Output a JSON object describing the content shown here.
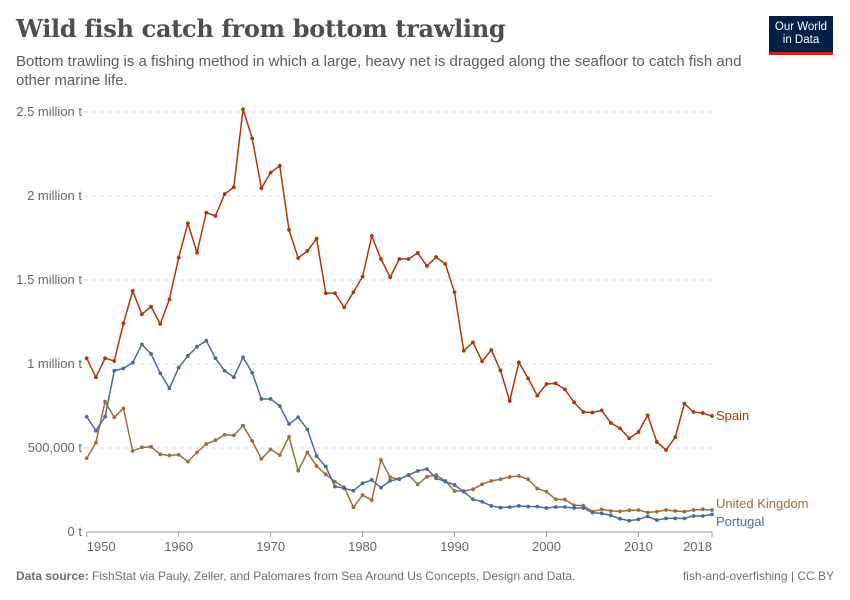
{
  "header": {
    "title": "Wild fish catch from bottom trawling",
    "subtitle": "Bottom trawling is a fishing method in which a large, heavy net is dragged along the seafloor to catch fish and other marine life.",
    "logo_text": "Our World in Data",
    "logo_line1": "Our World",
    "logo_line2": "in Data"
  },
  "footer": {
    "source_label": "Data source:",
    "source_text": "FishStat via Pauly, Zeller, and Palomares from Sea Around Us Concepts, Design and Data.",
    "right_text": "fish-and-overfishing | CC BY"
  },
  "colors": {
    "Spain": "#b13507",
    "United Kingdom": "#9c6e3c",
    "Portugal": "#4c6a9c",
    "logo_bg": "#002147",
    "logo_accent": "#ce261e"
  },
  "chart_data": {
    "type": "line",
    "title": "Wild fish catch from bottom trawling",
    "xlabel": "",
    "ylabel": "",
    "xlim": [
      1950,
      2018
    ],
    "ylim": [
      0,
      2500000
    ],
    "grid": "horizontal dashed",
    "legend": "inline labels at line ends (right)",
    "x_ticks": [
      "1950",
      "1960",
      "1970",
      "1980",
      "1990",
      "2000",
      "2010",
      "2018"
    ],
    "x_tick_values": [
      1950,
      1960,
      1970,
      1980,
      1990,
      2000,
      2010,
      2018
    ],
    "y_ticks": [
      "0 t",
      "500,000 t",
      "1 million t",
      "1.5 million t",
      "2 million t",
      "2.5 million t"
    ],
    "y_tick_values": [
      0,
      500000,
      1000000,
      1500000,
      2000000,
      2500000
    ],
    "x_start": 1950,
    "series": [
      {
        "name": "Spain",
        "values": [
          1034000,
          921000,
          1034000,
          1018000,
          1242000,
          1435000,
          1296000,
          1341000,
          1238000,
          1385000,
          1633000,
          1838000,
          1663000,
          1901000,
          1881000,
          2012000,
          2052000,
          2516000,
          2343000,
          2046000,
          2139000,
          2180000,
          1798000,
          1631000,
          1673000,
          1746000,
          1421000,
          1421000,
          1337000,
          1427000,
          1520000,
          1762000,
          1625000,
          1516000,
          1625000,
          1625000,
          1661000,
          1583000,
          1637000,
          1595000,
          1427000,
          1079000,
          1129000,
          1016000,
          1083000,
          962000,
          780000,
          1010000,
          915000,
          811000,
          881000,
          885000,
          849000,
          772000,
          714000,
          711000,
          724000,
          649000,
          617000,
          558000,
          595000,
          695000,
          536000,
          488000,
          564000,
          764000,
          714000,
          708000,
          690000
        ]
      },
      {
        "name": "United Kingdom",
        "values": [
          439000,
          532000,
          776000,
          683000,
          736000,
          482000,
          504000,
          507000,
          462000,
          456000,
          460000,
          419000,
          474000,
          524000,
          546000,
          579000,
          575000,
          633000,
          542000,
          435000,
          492000,
          458000,
          567000,
          365000,
          474000,
          393000,
          343000,
          300000,
          266000,
          147000,
          220000,
          190000,
          429000,
          326000,
          314000,
          339000,
          284000,
          329000,
          339000,
          304000,
          244000,
          244000,
          254000,
          284000,
          304000,
          314000,
          328000,
          333000,
          314000,
          259000,
          240000,
          195000,
          193000,
          159000,
          157000,
          121000,
          135000,
          125000,
          123000,
          129000,
          131000,
          117000,
          121000,
          131000,
          125000,
          121000,
          131000,
          135000,
          131000
        ]
      },
      {
        "name": "Portugal",
        "values": [
          686000,
          603000,
          686000,
          960000,
          974000,
          1008000,
          1117000,
          1060000,
          945000,
          855000,
          978000,
          1048000,
          1103000,
          1139000,
          1034000,
          960000,
          921000,
          1040000,
          948000,
          792000,
          792000,
          750000,
          643000,
          683000,
          611000,
          452000,
          389000,
          270000,
          260000,
          246000,
          290000,
          310000,
          264000,
          305000,
          315000,
          339000,
          363000,
          375000,
          320000,
          300000,
          280000,
          240000,
          195000,
          180000,
          155000,
          145000,
          148000,
          155000,
          152000,
          151000,
          143000,
          149000,
          149000,
          143000,
          143000,
          115000,
          111000,
          99000,
          79000,
          67000,
          75000,
          93000,
          71000,
          81000,
          81000,
          81000,
          95000,
          95000,
          105000
        ]
      }
    ]
  }
}
